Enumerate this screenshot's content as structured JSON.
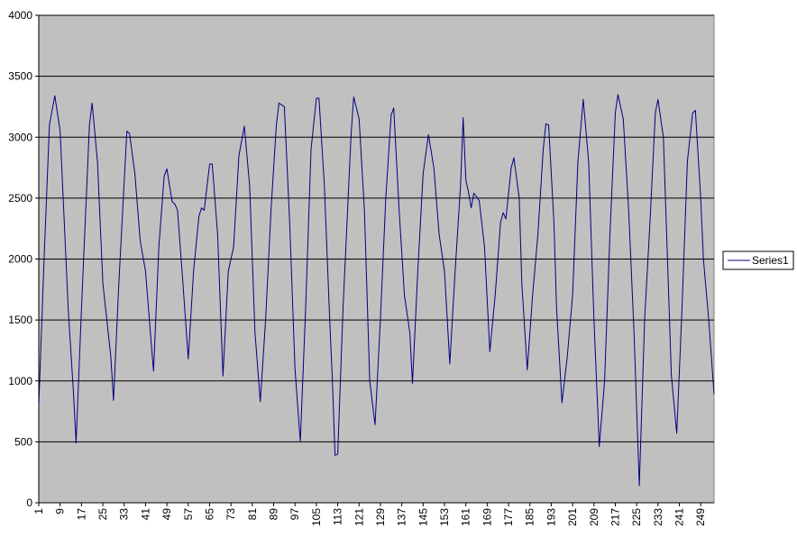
{
  "chart_data": {
    "type": "line",
    "title": "",
    "xlabel": "",
    "ylabel": "",
    "ylim": [
      0,
      4000
    ],
    "y_ticks": [
      0,
      500,
      1000,
      1500,
      2000,
      2500,
      3000,
      3500,
      4000
    ],
    "x_range": [
      1,
      252
    ],
    "x_ticks": [
      1,
      9,
      17,
      25,
      33,
      41,
      49,
      57,
      65,
      73,
      81,
      89,
      97,
      105,
      113,
      121,
      129,
      137,
      145,
      153,
      161,
      169,
      177,
      185,
      193,
      201,
      209,
      217,
      225,
      233,
      241,
      249
    ],
    "grid": "horizontal major gridlines",
    "plot_background": "#c0c0c0",
    "legend": {
      "position": "right",
      "entries": [
        "Series1"
      ]
    },
    "series": [
      {
        "name": "Series1",
        "color": "#000080",
        "points": [
          [
            1,
            800
          ],
          [
            3,
            2000
          ],
          [
            5,
            3100
          ],
          [
            7,
            3340
          ],
          [
            9,
            3050
          ],
          [
            12,
            1600
          ],
          [
            14,
            900
          ],
          [
            15,
            490
          ],
          [
            17,
            1600
          ],
          [
            20,
            3100
          ],
          [
            21,
            3280
          ],
          [
            23,
            2800
          ],
          [
            25,
            1800
          ],
          [
            28,
            1200
          ],
          [
            29,
            840
          ],
          [
            31,
            1800
          ],
          [
            34,
            3050
          ],
          [
            35,
            3030
          ],
          [
            37,
            2700
          ],
          [
            39,
            2150
          ],
          [
            41,
            1900
          ],
          [
            43,
            1350
          ],
          [
            44,
            1080
          ],
          [
            46,
            2100
          ],
          [
            48,
            2680
          ],
          [
            49,
            2740
          ],
          [
            51,
            2470
          ],
          [
            52,
            2450
          ],
          [
            53,
            2400
          ],
          [
            55,
            1800
          ],
          [
            57,
            1180
          ],
          [
            59,
            1900
          ],
          [
            61,
            2350
          ],
          [
            62,
            2420
          ],
          [
            63,
            2400
          ],
          [
            65,
            2780
          ],
          [
            66,
            2780
          ],
          [
            68,
            2200
          ],
          [
            70,
            1040
          ],
          [
            72,
            1900
          ],
          [
            74,
            2100
          ],
          [
            76,
            2850
          ],
          [
            78,
            3090
          ],
          [
            80,
            2600
          ],
          [
            82,
            1400
          ],
          [
            84,
            830
          ],
          [
            86,
            1500
          ],
          [
            88,
            2400
          ],
          [
            90,
            3100
          ],
          [
            91,
            3280
          ],
          [
            93,
            3250
          ],
          [
            95,
            2300
          ],
          [
            97,
            1100
          ],
          [
            99,
            500
          ],
          [
            101,
            1600
          ],
          [
            103,
            2900
          ],
          [
            105,
            3320
          ],
          [
            106,
            3320
          ],
          [
            108,
            2600
          ],
          [
            110,
            1500
          ],
          [
            111,
            1000
          ],
          [
            112,
            390
          ],
          [
            113,
            400
          ],
          [
            115,
            1600
          ],
          [
            118,
            3020
          ],
          [
            119,
            3330
          ],
          [
            121,
            3150
          ],
          [
            123,
            2400
          ],
          [
            125,
            1000
          ],
          [
            127,
            640
          ],
          [
            129,
            1500
          ],
          [
            131,
            2500
          ],
          [
            133,
            3180
          ],
          [
            134,
            3240
          ],
          [
            136,
            2400
          ],
          [
            138,
            1700
          ],
          [
            140,
            1400
          ],
          [
            141,
            980
          ],
          [
            143,
            1900
          ],
          [
            145,
            2700
          ],
          [
            147,
            3020
          ],
          [
            149,
            2750
          ],
          [
            151,
            2200
          ],
          [
            153,
            1900
          ],
          [
            155,
            1140
          ],
          [
            157,
            1900
          ],
          [
            159,
            2600
          ],
          [
            160,
            3160
          ],
          [
            161,
            2650
          ],
          [
            162,
            2550
          ],
          [
            163,
            2420
          ],
          [
            164,
            2540
          ],
          [
            166,
            2480
          ],
          [
            168,
            2100
          ],
          [
            170,
            1240
          ],
          [
            172,
            1700
          ],
          [
            174,
            2300
          ],
          [
            175,
            2380
          ],
          [
            176,
            2330
          ],
          [
            178,
            2750
          ],
          [
            179,
            2830
          ],
          [
            181,
            2500
          ],
          [
            182,
            1800
          ],
          [
            184,
            1090
          ],
          [
            186,
            1700
          ],
          [
            188,
            2200
          ],
          [
            190,
            2900
          ],
          [
            191,
            3110
          ],
          [
            192,
            3100
          ],
          [
            194,
            2300
          ],
          [
            195,
            1600
          ],
          [
            197,
            820
          ],
          [
            199,
            1200
          ],
          [
            201,
            1700
          ],
          [
            203,
            2800
          ],
          [
            205,
            3310
          ],
          [
            207,
            2800
          ],
          [
            209,
            1500
          ],
          [
            211,
            460
          ],
          [
            213,
            1000
          ],
          [
            215,
            2200
          ],
          [
            217,
            3200
          ],
          [
            218,
            3350
          ],
          [
            220,
            3150
          ],
          [
            222,
            2400
          ],
          [
            224,
            1400
          ],
          [
            226,
            140
          ],
          [
            228,
            1500
          ],
          [
            230,
            2300
          ],
          [
            232,
            3200
          ],
          [
            233,
            3310
          ],
          [
            235,
            3000
          ],
          [
            237,
            1700
          ],
          [
            238,
            1050
          ],
          [
            240,
            570
          ],
          [
            242,
            1600
          ],
          [
            244,
            2800
          ],
          [
            246,
            3200
          ],
          [
            247,
            3220
          ],
          [
            249,
            2500
          ],
          [
            250,
            2000
          ],
          [
            252,
            1500
          ],
          [
            253,
            1200
          ],
          [
            254,
            890
          ]
        ]
      }
    ]
  }
}
